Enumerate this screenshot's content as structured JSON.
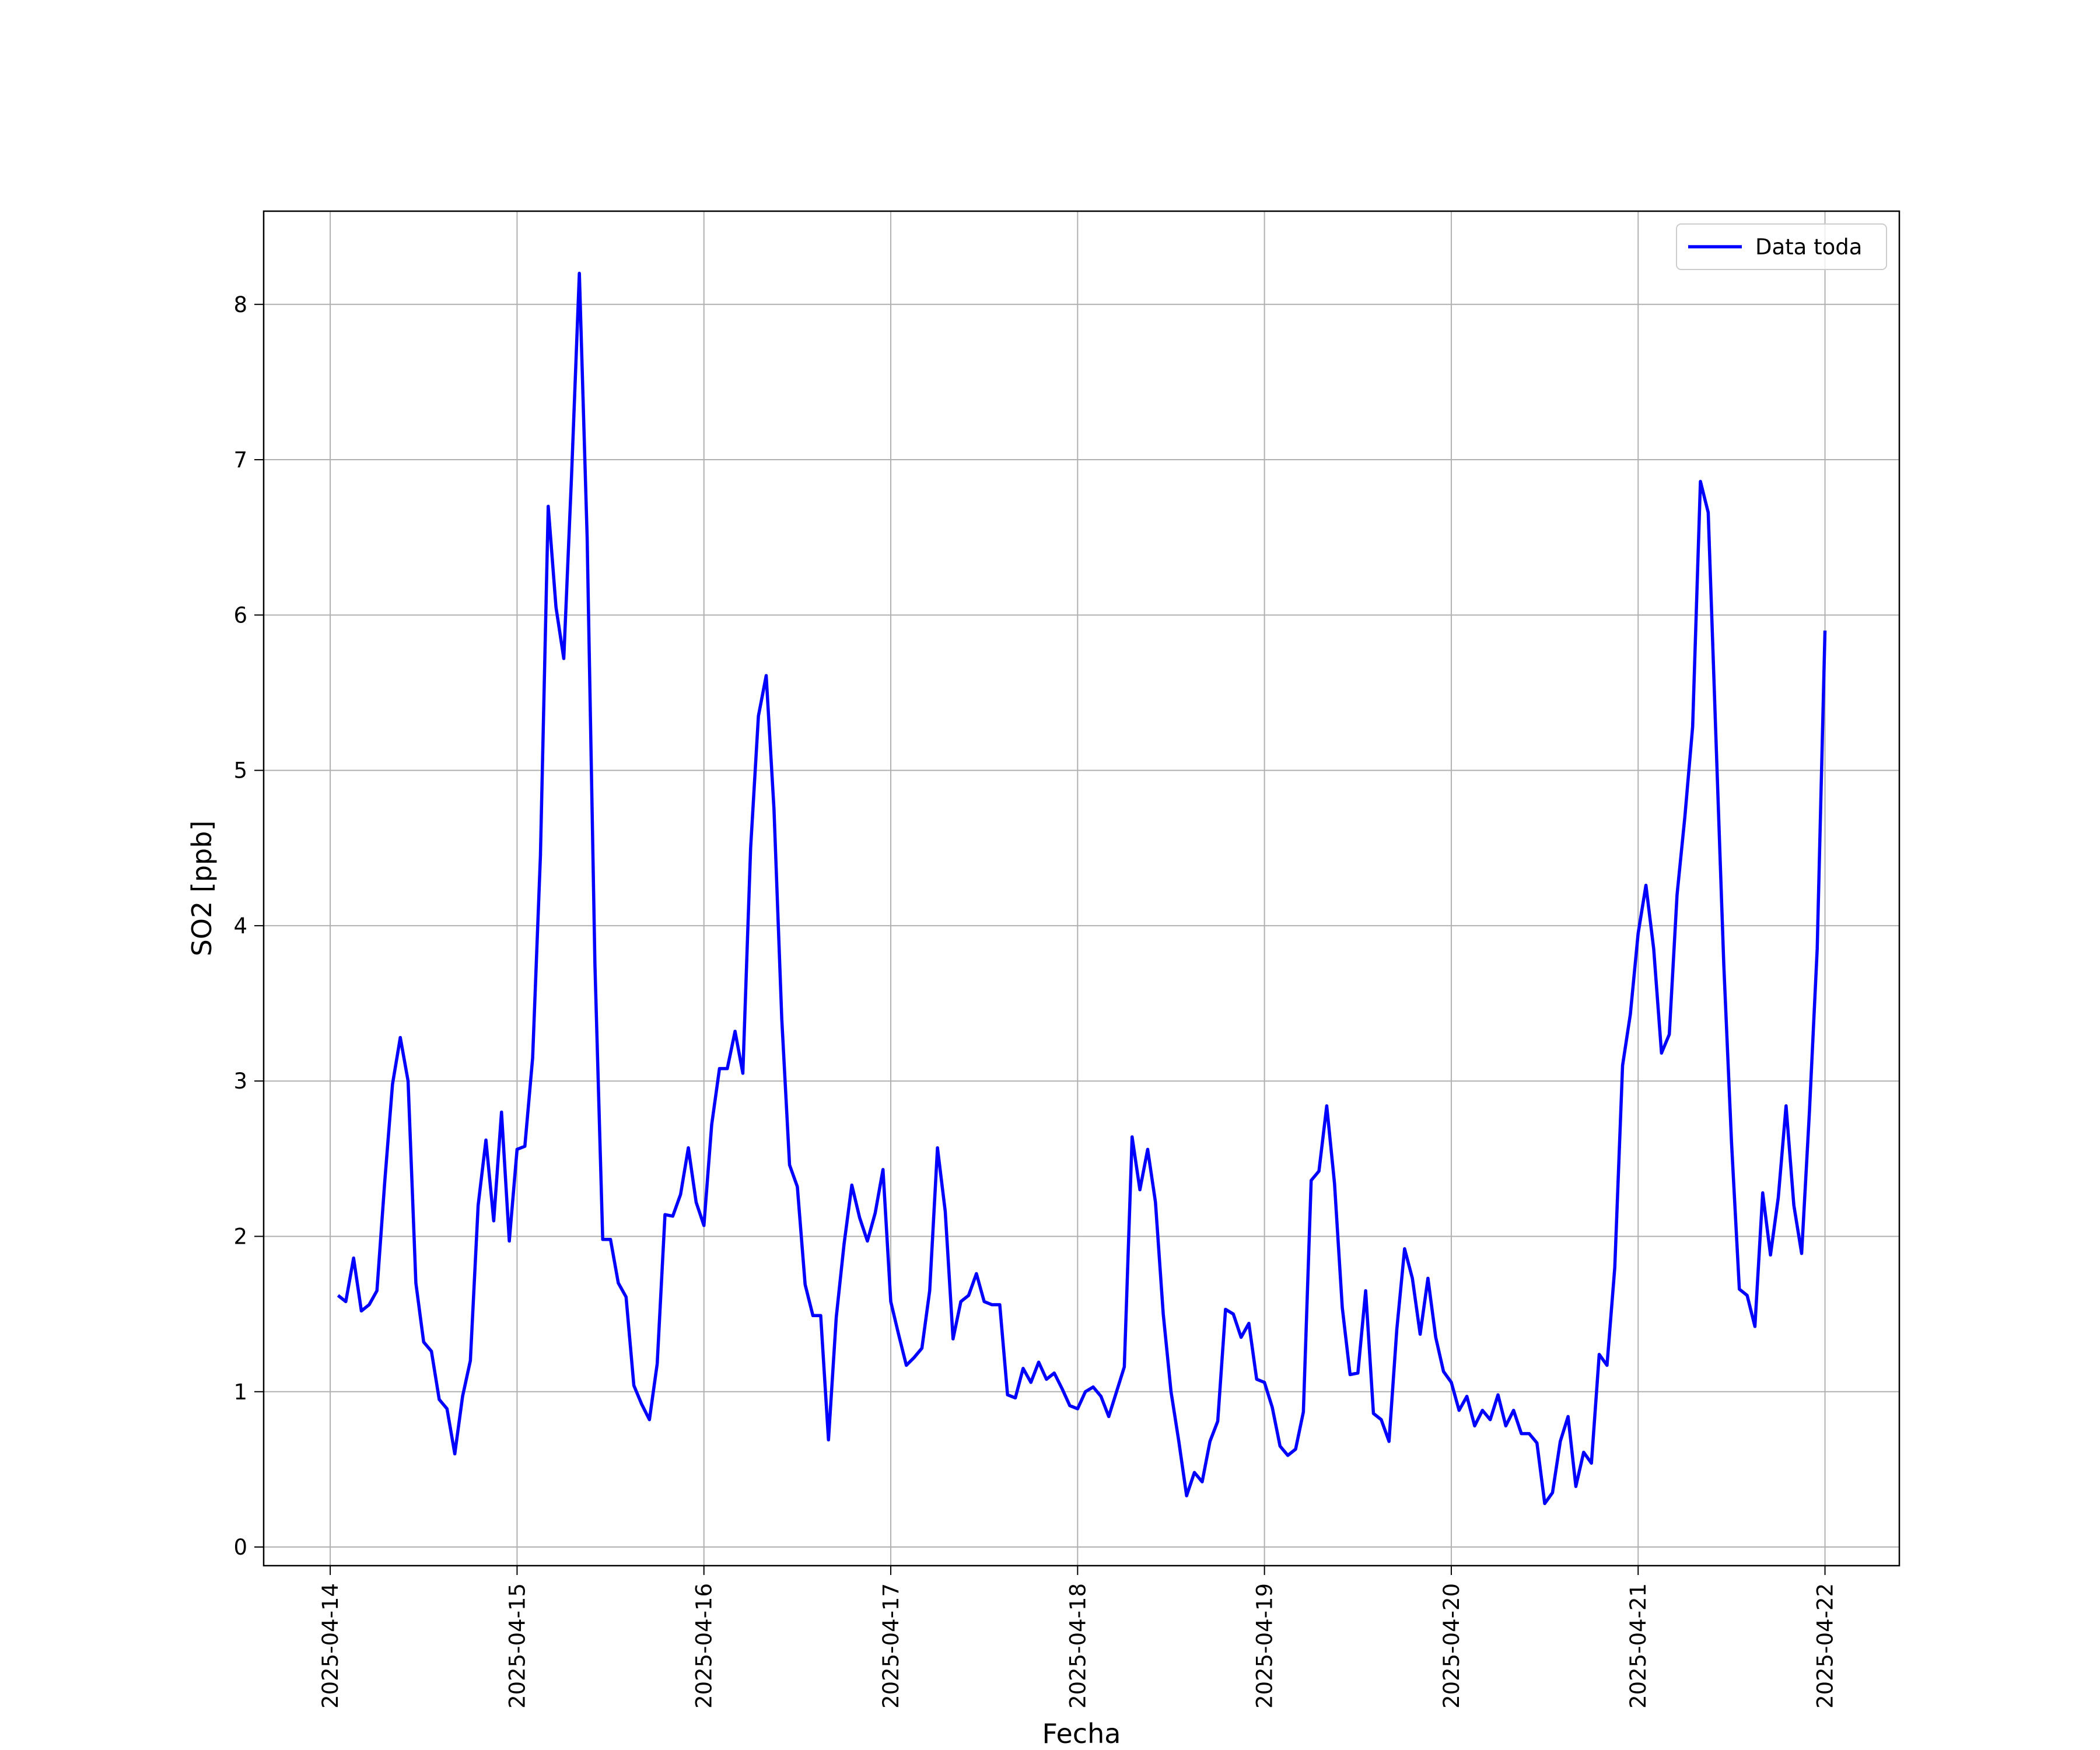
{
  "chart_data": {
    "type": "line",
    "xlabel": "Fecha",
    "ylabel": "SO2 [ppb]",
    "x": [
      "2025-04-14 01:00",
      "2025-04-14 02:00",
      "2025-04-14 03:00",
      "2025-04-14 04:00",
      "2025-04-14 05:00",
      "2025-04-14 06:00",
      "2025-04-14 07:00",
      "2025-04-14 08:00",
      "2025-04-14 09:00",
      "2025-04-14 10:00",
      "2025-04-14 11:00",
      "2025-04-14 12:00",
      "2025-04-14 13:00",
      "2025-04-14 14:00",
      "2025-04-14 15:00",
      "2025-04-14 16:00",
      "2025-04-14 17:00",
      "2025-04-14 18:00",
      "2025-04-14 19:00",
      "2025-04-14 20:00",
      "2025-04-14 21:00",
      "2025-04-14 22:00",
      "2025-04-14 23:00",
      "2025-04-15 00:00",
      "2025-04-15 01:00",
      "2025-04-15 02:00",
      "2025-04-15 03:00",
      "2025-04-15 04:00",
      "2025-04-15 05:00",
      "2025-04-15 06:00",
      "2025-04-15 07:00",
      "2025-04-15 08:00",
      "2025-04-15 09:00",
      "2025-04-15 10:00",
      "2025-04-15 11:00",
      "2025-04-15 12:00",
      "2025-04-15 13:00",
      "2025-04-15 14:00",
      "2025-04-15 15:00",
      "2025-04-15 16:00",
      "2025-04-15 17:00",
      "2025-04-15 18:00",
      "2025-04-15 19:00",
      "2025-04-15 20:00",
      "2025-04-15 21:00",
      "2025-04-15 22:00",
      "2025-04-15 23:00",
      "2025-04-16 00:00",
      "2025-04-16 01:00",
      "2025-04-16 02:00",
      "2025-04-16 03:00",
      "2025-04-16 04:00",
      "2025-04-16 05:00",
      "2025-04-16 06:00",
      "2025-04-16 07:00",
      "2025-04-16 08:00",
      "2025-04-16 09:00",
      "2025-04-16 10:00",
      "2025-04-16 11:00",
      "2025-04-16 12:00",
      "2025-04-16 13:00",
      "2025-04-16 14:00",
      "2025-04-16 15:00",
      "2025-04-16 16:00",
      "2025-04-16 17:00",
      "2025-04-16 18:00",
      "2025-04-16 19:00",
      "2025-04-16 20:00",
      "2025-04-16 21:00",
      "2025-04-16 22:00",
      "2025-04-16 23:00",
      "2025-04-17 00:00",
      "2025-04-17 01:00",
      "2025-04-17 02:00",
      "2025-04-17 03:00",
      "2025-04-17 04:00",
      "2025-04-17 05:00",
      "2025-04-17 06:00",
      "2025-04-17 07:00",
      "2025-04-17 08:00",
      "2025-04-17 09:00",
      "2025-04-17 10:00",
      "2025-04-17 11:00",
      "2025-04-17 12:00",
      "2025-04-17 13:00",
      "2025-04-17 14:00",
      "2025-04-17 15:00",
      "2025-04-17 16:00",
      "2025-04-17 17:00",
      "2025-04-17 18:00",
      "2025-04-17 19:00",
      "2025-04-17 20:00",
      "2025-04-17 21:00",
      "2025-04-17 22:00",
      "2025-04-17 23:00",
      "2025-04-18 00:00",
      "2025-04-18 01:00",
      "2025-04-18 02:00",
      "2025-04-18 03:00",
      "2025-04-18 04:00",
      "2025-04-18 05:00",
      "2025-04-18 06:00",
      "2025-04-18 07:00",
      "2025-04-18 08:00",
      "2025-04-18 09:00",
      "2025-04-18 10:00",
      "2025-04-18 11:00",
      "2025-04-18 12:00",
      "2025-04-18 13:00",
      "2025-04-18 14:00",
      "2025-04-18 15:00",
      "2025-04-18 16:00",
      "2025-04-18 17:00",
      "2025-04-18 18:00",
      "2025-04-18 19:00",
      "2025-04-18 20:00",
      "2025-04-18 21:00",
      "2025-04-18 22:00",
      "2025-04-18 23:00",
      "2025-04-19 00:00",
      "2025-04-19 01:00",
      "2025-04-19 02:00",
      "2025-04-19 03:00",
      "2025-04-19 04:00",
      "2025-04-19 05:00",
      "2025-04-19 06:00",
      "2025-04-19 07:00",
      "2025-04-19 08:00",
      "2025-04-19 09:00",
      "2025-04-19 10:00",
      "2025-04-19 11:00",
      "2025-04-19 12:00",
      "2025-04-19 13:00",
      "2025-04-19 14:00",
      "2025-04-19 15:00",
      "2025-04-19 16:00",
      "2025-04-19 17:00",
      "2025-04-19 18:00",
      "2025-04-19 19:00",
      "2025-04-19 20:00",
      "2025-04-19 21:00",
      "2025-04-19 22:00",
      "2025-04-19 23:00",
      "2025-04-20 00:00",
      "2025-04-20 01:00",
      "2025-04-20 02:00",
      "2025-04-20 03:00",
      "2025-04-20 04:00",
      "2025-04-20 05:00",
      "2025-04-20 06:00",
      "2025-04-20 07:00",
      "2025-04-20 08:00",
      "2025-04-20 09:00",
      "2025-04-20 10:00",
      "2025-04-20 11:00",
      "2025-04-20 12:00",
      "2025-04-20 13:00",
      "2025-04-20 14:00",
      "2025-04-20 15:00",
      "2025-04-20 16:00",
      "2025-04-20 17:00",
      "2025-04-20 18:00",
      "2025-04-20 19:00",
      "2025-04-20 20:00",
      "2025-04-20 21:00",
      "2025-04-20 22:00",
      "2025-04-20 23:00",
      "2025-04-21 00:00",
      "2025-04-21 01:00",
      "2025-04-21 02:00",
      "2025-04-21 03:00",
      "2025-04-21 04:00",
      "2025-04-21 05:00",
      "2025-04-21 06:00",
      "2025-04-21 07:00",
      "2025-04-21 08:00",
      "2025-04-21 09:00",
      "2025-04-21 10:00",
      "2025-04-21 11:00",
      "2025-04-21 12:00",
      "2025-04-21 13:00",
      "2025-04-21 14:00",
      "2025-04-21 15:00",
      "2025-04-21 16:00",
      "2025-04-21 17:00",
      "2025-04-21 18:00",
      "2025-04-21 19:00",
      "2025-04-21 20:00",
      "2025-04-21 21:00",
      "2025-04-21 22:00",
      "2025-04-21 23:00",
      "2025-04-22 00:00"
    ],
    "series": [
      {
        "name": "Data toda",
        "color": "#0000ff",
        "values": [
          1.62,
          1.58,
          1.86,
          1.52,
          1.56,
          1.65,
          2.35,
          2.98,
          3.28,
          3.0,
          1.7,
          1.32,
          1.26,
          0.95,
          0.89,
          0.6,
          0.97,
          1.2,
          2.2,
          2.62,
          2.1,
          2.8,
          1.97,
          2.56,
          2.58,
          3.15,
          4.45,
          6.7,
          6.05,
          5.72,
          6.9,
          8.2,
          6.5,
          3.75,
          1.98,
          1.98,
          1.7,
          1.61,
          1.04,
          0.92,
          0.82,
          1.18,
          2.14,
          2.13,
          2.27,
          2.57,
          2.22,
          2.07,
          2.72,
          3.08,
          3.08,
          3.32,
          3.05,
          4.5,
          5.35,
          5.61,
          4.75,
          3.4,
          2.46,
          2.32,
          1.69,
          1.49,
          1.49,
          0.69,
          1.48,
          1.95,
          2.33,
          2.12,
          1.97,
          2.15,
          2.43,
          1.58,
          1.37,
          1.17,
          1.22,
          1.28,
          1.65,
          2.57,
          2.16,
          1.34,
          1.58,
          1.62,
          1.76,
          1.58,
          1.56,
          1.56,
          0.98,
          0.96,
          1.15,
          1.06,
          1.19,
          1.08,
          1.12,
          1.02,
          0.91,
          0.89,
          1.0,
          1.03,
          0.97,
          0.84,
          1.0,
          1.16,
          2.64,
          2.3,
          2.56,
          2.22,
          1.5,
          1.0,
          0.68,
          0.33,
          0.48,
          0.42,
          0.68,
          0.81,
          1.53,
          1.5,
          1.35,
          1.44,
          1.08,
          1.06,
          0.9,
          0.65,
          0.59,
          0.63,
          0.87,
          2.36,
          2.42,
          2.84,
          2.34,
          1.54,
          1.11,
          1.12,
          1.65,
          0.86,
          0.82,
          0.68,
          1.4,
          1.92,
          1.73,
          1.37,
          1.73,
          1.35,
          1.13,
          1.06,
          0.88,
          0.97,
          0.78,
          0.88,
          0.82,
          0.98,
          0.78,
          0.88,
          0.73,
          0.73,
          0.67,
          0.28,
          0.35,
          0.68,
          0.84,
          0.39,
          0.61,
          0.54,
          1.24,
          1.17,
          1.8,
          3.1,
          3.43,
          3.95,
          4.26,
          3.85,
          3.18,
          3.3,
          4.2,
          4.7,
          5.28,
          6.86,
          6.66,
          5.2,
          3.75,
          2.6,
          1.66,
          1.62,
          1.42,
          2.28,
          1.88,
          2.25,
          2.84,
          2.2,
          1.89,
          2.8,
          3.85,
          5.9
        ]
      }
    ],
    "xlim": [
      "2025-04-13 15:27",
      "2025-04-22 09:33"
    ],
    "xticks": [
      "2025-04-14",
      "2025-04-15",
      "2025-04-16",
      "2025-04-17",
      "2025-04-18",
      "2025-04-19",
      "2025-04-20",
      "2025-04-21",
      "2025-04-22"
    ],
    "ylim": [
      -0.12,
      8.6
    ],
    "yticks": [
      0,
      1,
      2,
      3,
      4,
      5,
      6,
      7,
      8
    ],
    "grid": true,
    "legend": "upper right"
  }
}
